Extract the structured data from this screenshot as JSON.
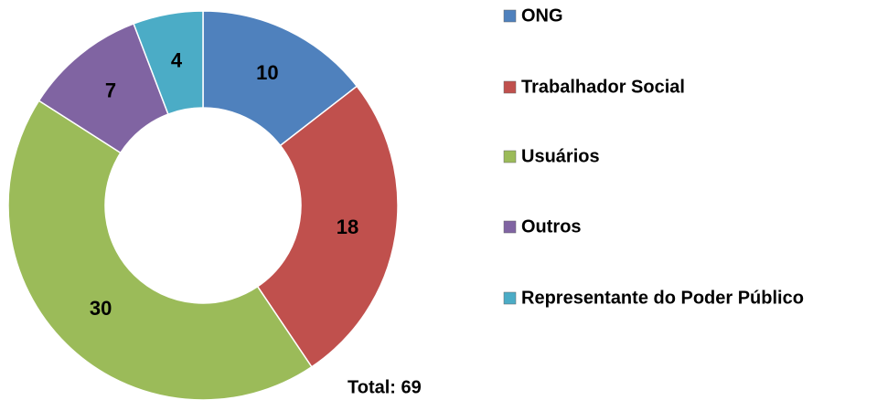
{
  "chart_data": {
    "type": "donut",
    "categories": [
      "ONG",
      "Trabalhador Social",
      "Usuários",
      "Outros",
      "Representante do Poder Público"
    ],
    "values": [
      10,
      18,
      30,
      7,
      4
    ],
    "colors": [
      "#4f81bd",
      "#c0504d",
      "#9bbb59",
      "#8064a2",
      "#4bacc6"
    ],
    "annotation": "Total: 69",
    "legend": "right"
  }
}
